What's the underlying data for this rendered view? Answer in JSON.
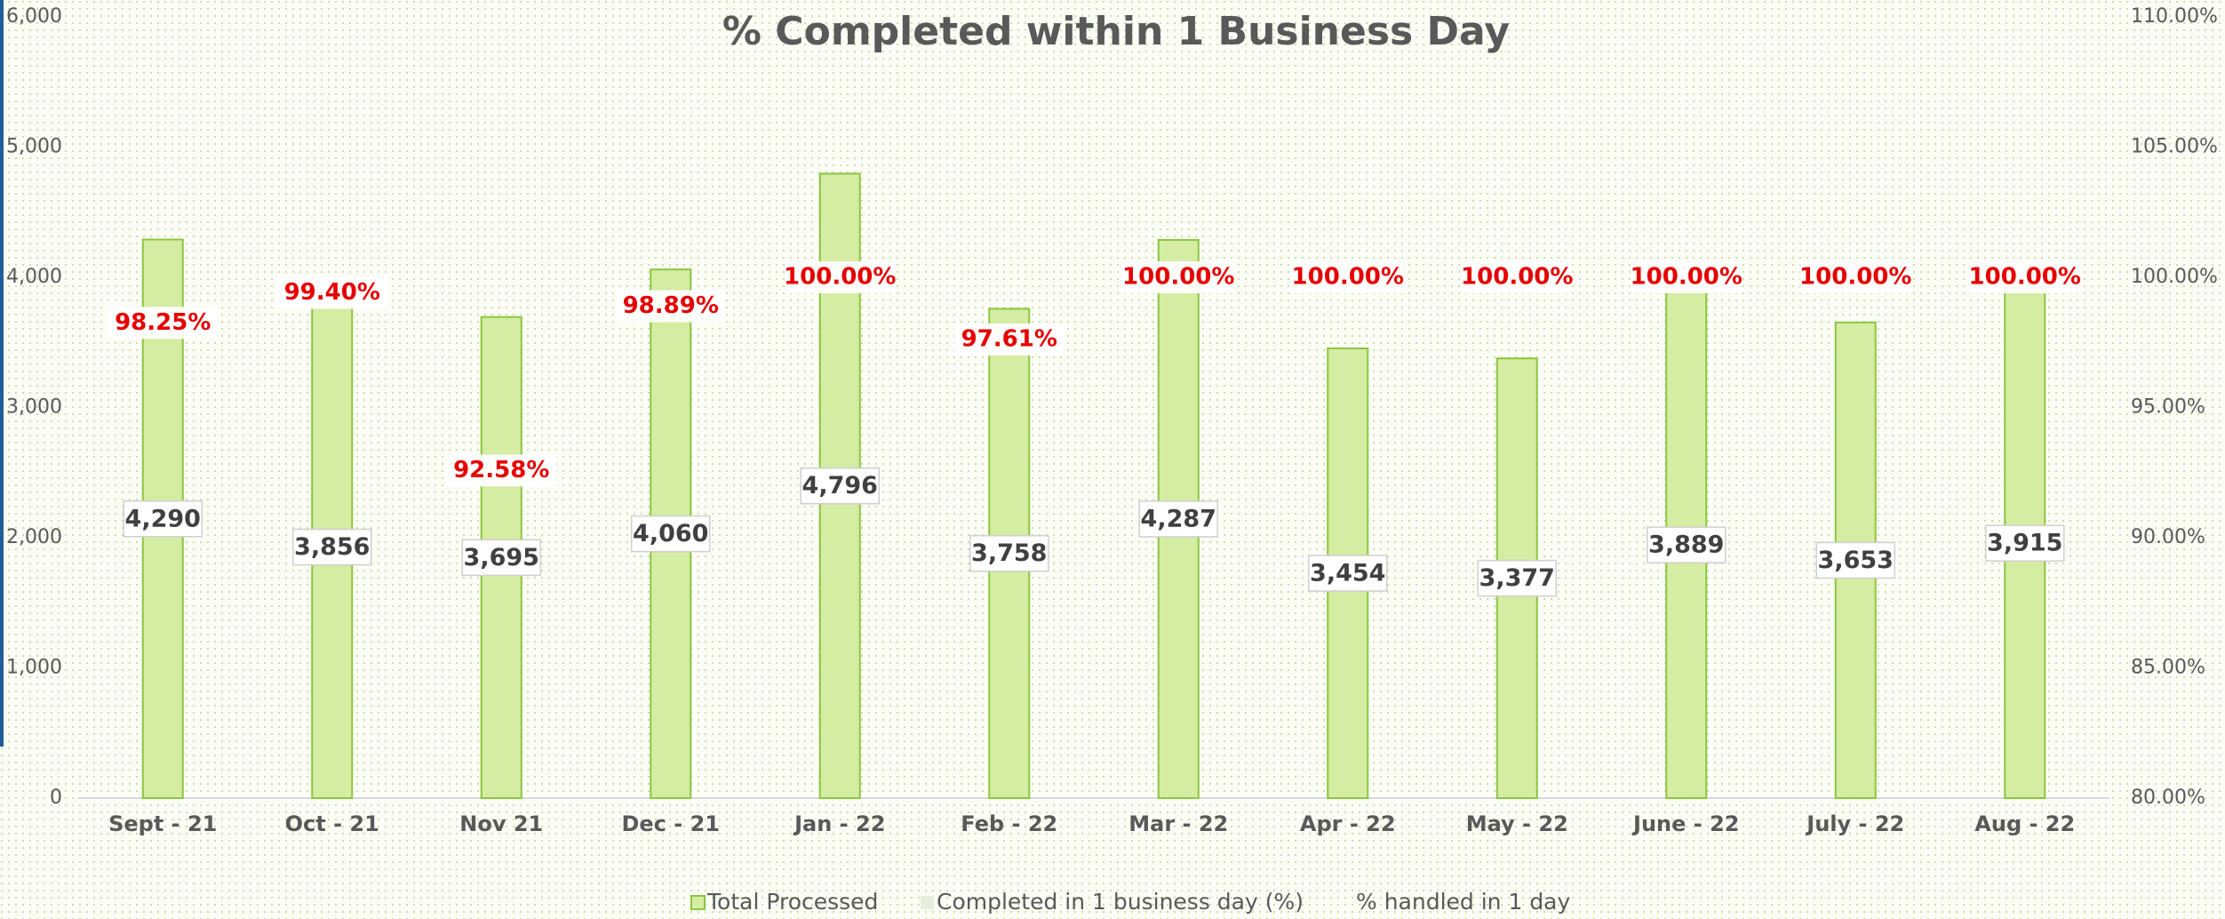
{
  "chart_data": {
    "type": "bar",
    "title": "% Completed within 1 Business Day",
    "categories": [
      "Sept - 21",
      "Oct - 21",
      "Nov 21",
      "Dec - 21",
      "Jan - 22",
      "Feb - 22",
      "Mar - 22",
      "Apr - 22",
      "May - 22",
      "June - 22",
      "July - 22",
      "Aug - 22"
    ],
    "series": [
      {
        "name": "Total Processed",
        "color": "#d5eca3",
        "values": [
          4290,
          3856,
          3695,
          4060,
          4796,
          3758,
          4287,
          3454,
          3377,
          3889,
          3653,
          3915
        ],
        "value_labels": [
          "4,290",
          "3,856",
          "3,695",
          "4,060",
          "4,796",
          "3,758",
          "4,287",
          "3,454",
          "3,377",
          "3,889",
          "3,653",
          "3,915"
        ]
      },
      {
        "name": "Completed in 1 business day (%)",
        "color": "#e8eedd",
        "axis": "y2",
        "values": [
          98.25,
          99.4,
          92.58,
          98.89,
          100,
          97.61,
          100,
          100,
          100,
          100,
          100,
          100
        ],
        "value_labels": [
          "98.25%",
          "99.40%",
          "92.58%",
          "98.89%",
          "100.00%",
          "97.61%",
          "100.00%",
          "100.00%",
          "100.00%",
          "100.00%",
          "100.00%",
          "100.00%"
        ]
      },
      {
        "name": "% handled in 1 day",
        "axis": "y2",
        "values": [
          null,
          null,
          null,
          null,
          null,
          null,
          null,
          null,
          null,
          null,
          null,
          null
        ]
      }
    ],
    "ylim": [
      0,
      6000
    ],
    "yticks": [
      0,
      {
        "value": 1000,
        "label": "1,000"
      },
      {
        "value": 2000,
        "label": "2,000"
      },
      {
        "value": 3000,
        "label": "3,000"
      },
      {
        "value": 4000,
        "label": "4,000"
      },
      {
        "value": 5000,
        "label": "5,000"
      },
      {
        "value": 6000,
        "label": "6,000"
      }
    ],
    "y2lim": [
      80,
      110
    ],
    "y2ticks": [
      {
        "value": 80,
        "label": "80.00%"
      },
      {
        "value": 85,
        "label": "85.00%"
      },
      {
        "value": 90,
        "label": "90.00%"
      },
      {
        "value": 95,
        "label": "95.00%"
      },
      {
        "value": 100,
        "label": "100.00%"
      },
      {
        "value": 105,
        "label": "105.00%"
      },
      {
        "value": 110,
        "label": "110.00%"
      }
    ],
    "grid": false,
    "legend": "bottom"
  }
}
